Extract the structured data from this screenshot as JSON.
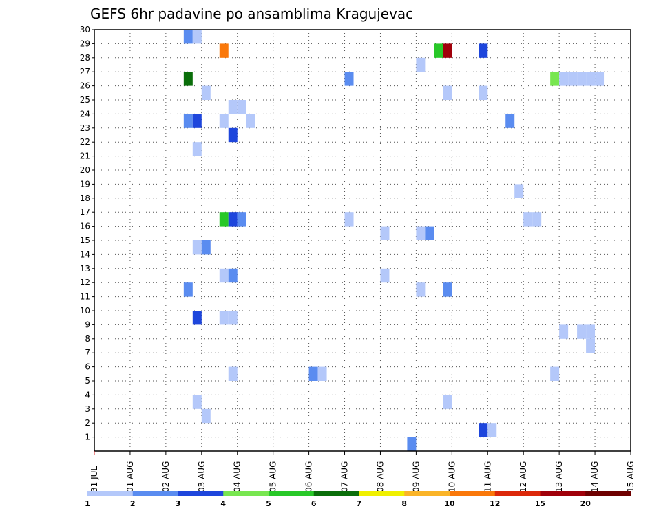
{
  "chart_data": {
    "type": "heatmap",
    "title": "GEFS 6hr padavine po ansamblima Kragujevac",
    "x_tick_labels": [
      "31 JUL",
      "01 AUG",
      "02 AUG",
      "03 AUG",
      "04 AUG",
      "05 AUG",
      "06 AUG",
      "07 AUG",
      "08 AUG",
      "09 AUG",
      "10 AUG",
      "11 AUG",
      "12 AUG",
      "13 AUG",
      "14 AUG",
      "15 AUG"
    ],
    "x_range_days": [
      0,
      15
    ],
    "members": [
      "1",
      "2",
      "3",
      "4",
      "5",
      "6",
      "7",
      "8",
      "9",
      "10",
      "11",
      "12",
      "13",
      "14",
      "15",
      "16",
      "17",
      "18",
      "19",
      "20",
      "21",
      "22",
      "23",
      "24",
      "25",
      "26",
      "27",
      "28",
      "29",
      "30"
    ],
    "y_range": [
      0,
      30
    ],
    "grid": true,
    "color_scale": {
      "labels": [
        "1",
        "2",
        "3",
        "4",
        "5",
        "6",
        "7",
        "8",
        "10",
        "12",
        "15",
        "20"
      ],
      "colors": [
        "#b4c8fa",
        "#5a8cf0",
        "#1e46dc",
        "#78e650",
        "#28c828",
        "#0a6e0a",
        "#f0f000",
        "#fab428",
        "#fa780a",
        "#dc280a",
        "#a0000a",
        "#6e0000"
      ]
    },
    "cells": [
      {
        "day": 2.75,
        "member": 30,
        "class": 2
      },
      {
        "day": 3.0,
        "member": 30,
        "class": 1
      },
      {
        "day": 3.75,
        "member": 29,
        "class": 9
      },
      {
        "day": 9.75,
        "member": 29,
        "class": 5
      },
      {
        "day": 10.0,
        "member": 29,
        "class": 11
      },
      {
        "day": 11.0,
        "member": 29,
        "class": 3
      },
      {
        "day": 9.25,
        "member": 28,
        "class": 1
      },
      {
        "day": 2.75,
        "member": 27,
        "class": 6
      },
      {
        "day": 7.25,
        "member": 27,
        "class": 2
      },
      {
        "day": 13.0,
        "member": 27,
        "class": 4
      },
      {
        "day": 13.25,
        "member": 27,
        "class": 1
      },
      {
        "day": 13.5,
        "member": 27,
        "class": 1
      },
      {
        "day": 13.75,
        "member": 27,
        "class": 1
      },
      {
        "day": 14.0,
        "member": 27,
        "class": 1
      },
      {
        "day": 14.25,
        "member": 27,
        "class": 1
      },
      {
        "day": 3.25,
        "member": 26,
        "class": 1
      },
      {
        "day": 10.0,
        "member": 26,
        "class": 1
      },
      {
        "day": 11.0,
        "member": 26,
        "class": 1
      },
      {
        "day": 4.0,
        "member": 25,
        "class": 1
      },
      {
        "day": 4.25,
        "member": 25,
        "class": 1
      },
      {
        "day": 2.75,
        "member": 24,
        "class": 2
      },
      {
        "day": 3.0,
        "member": 24,
        "class": 3
      },
      {
        "day": 3.75,
        "member": 24,
        "class": 1
      },
      {
        "day": 4.5,
        "member": 24,
        "class": 1
      },
      {
        "day": 11.75,
        "member": 24,
        "class": 2
      },
      {
        "day": 4.0,
        "member": 23,
        "class": 3
      },
      {
        "day": 3.0,
        "member": 22,
        "class": 1
      },
      {
        "day": 12.0,
        "member": 19,
        "class": 1
      },
      {
        "day": 3.75,
        "member": 17,
        "class": 5
      },
      {
        "day": 4.0,
        "member": 17,
        "class": 3
      },
      {
        "day": 4.25,
        "member": 17,
        "class": 2
      },
      {
        "day": 7.25,
        "member": 17,
        "class": 1
      },
      {
        "day": 12.25,
        "member": 17,
        "class": 1
      },
      {
        "day": 12.5,
        "member": 17,
        "class": 1
      },
      {
        "day": 8.25,
        "member": 16,
        "class": 1
      },
      {
        "day": 9.25,
        "member": 16,
        "class": 1
      },
      {
        "day": 9.5,
        "member": 16,
        "class": 2
      },
      {
        "day": 3.0,
        "member": 15,
        "class": 1
      },
      {
        "day": 3.25,
        "member": 15,
        "class": 2
      },
      {
        "day": 3.75,
        "member": 13,
        "class": 1
      },
      {
        "day": 4.0,
        "member": 13,
        "class": 2
      },
      {
        "day": 8.25,
        "member": 13,
        "class": 1
      },
      {
        "day": 2.75,
        "member": 12,
        "class": 2
      },
      {
        "day": 9.25,
        "member": 12,
        "class": 1
      },
      {
        "day": 10.0,
        "member": 12,
        "class": 2
      },
      {
        "day": 3.0,
        "member": 10,
        "class": 3
      },
      {
        "day": 3.75,
        "member": 10,
        "class": 1
      },
      {
        "day": 4.0,
        "member": 10,
        "class": 1
      },
      {
        "day": 13.25,
        "member": 9,
        "class": 1
      },
      {
        "day": 13.75,
        "member": 9,
        "class": 1
      },
      {
        "day": 14.0,
        "member": 9,
        "class": 1
      },
      {
        "day": 14.0,
        "member": 8,
        "class": 1
      },
      {
        "day": 4.0,
        "member": 6,
        "class": 1
      },
      {
        "day": 6.25,
        "member": 6,
        "class": 2
      },
      {
        "day": 6.5,
        "member": 6,
        "class": 1
      },
      {
        "day": 13.0,
        "member": 6,
        "class": 1
      },
      {
        "day": 3.0,
        "member": 4,
        "class": 1
      },
      {
        "day": 10.0,
        "member": 4,
        "class": 1
      },
      {
        "day": 3.25,
        "member": 3,
        "class": 1
      },
      {
        "day": 11.0,
        "member": 2,
        "class": 3
      },
      {
        "day": 11.25,
        "member": 2,
        "class": 1
      },
      {
        "day": 9.0,
        "member": 1,
        "class": 2
      }
    ]
  }
}
